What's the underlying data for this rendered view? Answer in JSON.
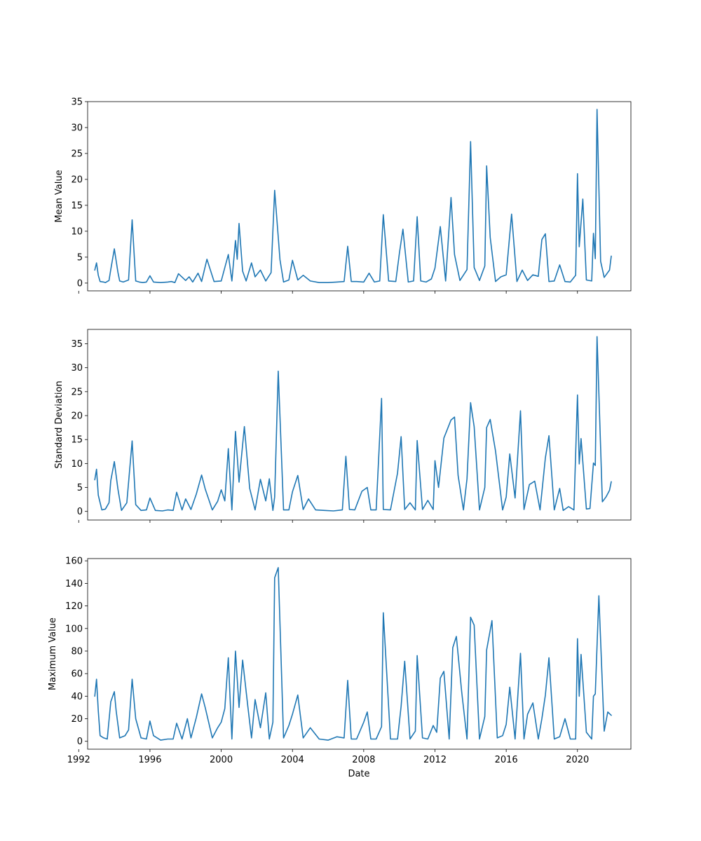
{
  "figure": {
    "background": "#ffffff",
    "line_color": "#1f77b4"
  },
  "chart_data": [
    {
      "type": "line",
      "title": "",
      "xlabel": "",
      "ylabel": "Mean Value",
      "xlim": [
        1992.5,
        2023.0
      ],
      "ylim": [
        -1.5,
        35
      ],
      "yticks": [
        0,
        5,
        10,
        15,
        20,
        25,
        30,
        35
      ],
      "xticks": [
        1992,
        1996,
        2000,
        2004,
        2008,
        2012,
        2016,
        2020
      ],
      "show_xtick_labels": false,
      "grid": false,
      "series": [
        {
          "x": [
            1992.9,
            1993.0,
            1993.1,
            1993.2,
            1993.4,
            1993.5,
            1993.7,
            1993.8,
            1994.0,
            1994.2,
            1994.3,
            1994.5,
            1994.8,
            1995.0,
            1995.2,
            1995.4,
            1995.6,
            1995.8,
            1996.0,
            1996.2,
            1996.6,
            1997.0,
            1997.2,
            1997.4,
            1997.6,
            1998.0,
            1998.2,
            1998.4,
            1998.7,
            1998.9,
            1999.2,
            1999.6,
            2000.0,
            2000.4,
            2000.6,
            2000.8,
            2000.9,
            2001.0,
            2001.2,
            2001.4,
            2001.7,
            2001.9,
            2002.2,
            2002.5,
            2002.8,
            2003.0,
            2003.3,
            2003.5,
            2003.8,
            2004.0,
            2004.3,
            2004.6,
            2005.0,
            2005.5,
            2006.0,
            2006.5,
            2006.9,
            2007.1,
            2007.3,
            2007.6,
            2008.0,
            2008.3,
            2008.6,
            2008.9,
            2009.1,
            2009.4,
            2009.8,
            2010.0,
            2010.2,
            2010.5,
            2010.8,
            2011.0,
            2011.2,
            2011.5,
            2011.8,
            2012.0,
            2012.3,
            2012.6,
            2012.9,
            2013.1,
            2013.4,
            2013.8,
            2014.0,
            2014.2,
            2014.5,
            2014.8,
            2014.9,
            2015.1,
            2015.4,
            2015.7,
            2016.0,
            2016.3,
            2016.6,
            2016.9,
            2017.2,
            2017.5,
            2017.8,
            2018.0,
            2018.2,
            2018.4,
            2018.7,
            2019.0,
            2019.3,
            2019.6,
            2019.9,
            2020.0,
            2020.1,
            2020.3,
            2020.5,
            2020.8,
            2020.9,
            2021.0,
            2021.1,
            2021.3,
            2021.5,
            2021.8,
            2021.9
          ],
          "y": [
            2.5,
            3.9,
            1.5,
            0.3,
            0.2,
            0.1,
            0.5,
            2.6,
            6.6,
            2.1,
            0.4,
            0.2,
            0.6,
            12.2,
            0.4,
            0.2,
            0.1,
            0.2,
            1.4,
            0.2,
            0.1,
            0.2,
            0.3,
            0.1,
            1.8,
            0.5,
            1.2,
            0.2,
            1.9,
            0.3,
            4.6,
            0.3,
            0.4,
            5.5,
            0.4,
            8.2,
            4.6,
            11.5,
            2.3,
            0.4,
            3.9,
            1.2,
            2.5,
            0.4,
            2.0,
            17.9,
            4.5,
            0.2,
            0.6,
            4.4,
            0.6,
            1.5,
            0.4,
            0.1,
            0.1,
            0.2,
            0.3,
            7.1,
            0.3,
            0.3,
            0.2,
            1.9,
            0.2,
            0.4,
            13.2,
            0.4,
            0.3,
            5.7,
            10.4,
            0.2,
            0.4,
            12.8,
            0.4,
            0.2,
            0.8,
            2.9,
            10.9,
            0.4,
            16.5,
            5.5,
            0.5,
            2.6,
            27.3,
            3.0,
            0.5,
            3.3,
            22.6,
            8.8,
            0.3,
            1.2,
            1.6,
            13.3,
            0.3,
            2.5,
            0.5,
            1.6,
            1.3,
            8.4,
            9.5,
            0.3,
            0.4,
            3.5,
            0.3,
            0.2,
            1.5,
            21.1,
            7.0,
            16.2,
            0.6,
            0.4,
            9.6,
            4.7,
            33.5,
            4.2,
            1.1,
            2.5,
            5.2
          ]
        }
      ]
    },
    {
      "type": "line",
      "title": "",
      "xlabel": "",
      "ylabel": "Standard Deviation",
      "xlim": [
        1992.5,
        2023.0
      ],
      "ylim": [
        -1.8,
        38.0
      ],
      "yticks": [
        0,
        5,
        10,
        15,
        20,
        25,
        30,
        35
      ],
      "xticks": [
        1992,
        1996,
        2000,
        2004,
        2008,
        2012,
        2016,
        2020
      ],
      "show_xtick_labels": false,
      "grid": false,
      "series": [
        {
          "x": [
            1992.9,
            1993.0,
            1993.1,
            1993.3,
            1993.5,
            1993.7,
            1993.8,
            1994.0,
            1994.2,
            1994.4,
            1994.7,
            1995.0,
            1995.2,
            1995.5,
            1995.8,
            1996.0,
            1996.3,
            1996.7,
            1997.0,
            1997.3,
            1997.5,
            1997.8,
            1998.0,
            1998.3,
            1998.6,
            1998.9,
            1999.1,
            1999.5,
            1999.8,
            2000.0,
            2000.2,
            2000.4,
            2000.6,
            2000.8,
            2001.0,
            2001.3,
            2001.6,
            2001.9,
            2002.2,
            2002.5,
            2002.7,
            2002.9,
            2003.0,
            2003.2,
            2003.5,
            2003.8,
            2004.0,
            2004.3,
            2004.6,
            2004.9,
            2005.3,
            2005.8,
            2006.3,
            2006.8,
            2007.0,
            2007.2,
            2007.5,
            2007.9,
            2008.2,
            2008.4,
            2008.7,
            2009.0,
            2009.1,
            2009.5,
            2009.9,
            2010.1,
            2010.3,
            2010.6,
            2010.9,
            2011.0,
            2011.3,
            2011.6,
            2011.9,
            2012.0,
            2012.2,
            2012.5,
            2012.9,
            2013.1,
            2013.3,
            2013.6,
            2013.8,
            2014.0,
            2014.2,
            2014.5,
            2014.8,
            2014.9,
            2015.1,
            2015.4,
            2015.8,
            2016.0,
            2016.2,
            2016.5,
            2016.8,
            2017.0,
            2017.3,
            2017.6,
            2017.9,
            2018.0,
            2018.2,
            2018.4,
            2018.7,
            2019.0,
            2019.2,
            2019.5,
            2019.8,
            2020.0,
            2020.1,
            2020.2,
            2020.5,
            2020.7,
            2020.9,
            2021.0,
            2021.1,
            2021.4,
            2021.6,
            2021.8,
            2021.9
          ],
          "y": [
            6.6,
            8.8,
            3.4,
            0.3,
            0.5,
            1.8,
            6.4,
            10.4,
            4.7,
            0.2,
            1.8,
            14.7,
            1.4,
            0.2,
            0.3,
            2.8,
            0.2,
            0.1,
            0.3,
            0.2,
            4.0,
            0.3,
            2.6,
            0.4,
            3.6,
            7.6,
            4.7,
            0.3,
            2.1,
            4.5,
            2.2,
            13.1,
            0.3,
            16.7,
            6.1,
            17.7,
            4.8,
            0.3,
            6.7,
            2.2,
            6.8,
            0.2,
            3.0,
            29.3,
            0.3,
            0.3,
            4.1,
            7.5,
            0.4,
            2.6,
            0.3,
            0.2,
            0.1,
            0.3,
            11.5,
            0.4,
            0.3,
            4.2,
            5.0,
            0.3,
            0.3,
            23.6,
            0.4,
            0.3,
            8.0,
            15.6,
            0.4,
            1.8,
            0.3,
            14.8,
            0.4,
            2.3,
            0.4,
            10.6,
            5.0,
            15.3,
            19.1,
            19.7,
            7.5,
            0.3,
            6.8,
            22.7,
            17.7,
            0.3,
            5.0,
            17.5,
            19.2,
            12.6,
            0.3,
            3.0,
            12.0,
            2.8,
            21.0,
            0.4,
            5.6,
            6.3,
            0.3,
            4.0,
            11.2,
            15.8,
            0.3,
            4.8,
            0.2,
            1.0,
            0.3,
            24.3,
            9.9,
            15.2,
            0.5,
            0.6,
            10.1,
            9.6,
            36.5,
            2.0,
            3.0,
            4.4,
            6.2
          ]
        }
      ]
    },
    {
      "type": "line",
      "title": "",
      "xlabel": "Date",
      "ylabel": "Maximum Value",
      "xlim": [
        1992.5,
        2023.0
      ],
      "ylim": [
        -7,
        162
      ],
      "yticks": [
        0,
        20,
        40,
        60,
        80,
        100,
        120,
        140,
        160
      ],
      "xticks": [
        1992,
        1996,
        2000,
        2004,
        2008,
        2012,
        2016,
        2020
      ],
      "show_xtick_labels": true,
      "grid": false,
      "series": [
        {
          "x": [
            1992.9,
            1993.0,
            1993.1,
            1993.2,
            1993.4,
            1993.6,
            1993.8,
            1994.0,
            1994.1,
            1994.3,
            1994.6,
            1994.8,
            1995.0,
            1995.2,
            1995.5,
            1995.8,
            1996.0,
            1996.2,
            1996.6,
            1997.0,
            1997.3,
            1997.5,
            1997.8,
            1998.1,
            1998.3,
            1998.6,
            1998.9,
            1999.1,
            1999.5,
            1999.8,
            2000.0,
            2000.2,
            2000.4,
            2000.6,
            2000.8,
            2001.0,
            2001.2,
            2001.5,
            2001.7,
            2001.9,
            2002.2,
            2002.5,
            2002.7,
            2002.9,
            2003.0,
            2003.2,
            2003.5,
            2003.8,
            2004.0,
            2004.3,
            2004.6,
            2005.0,
            2005.5,
            2006.0,
            2006.5,
            2006.9,
            2007.1,
            2007.3,
            2007.6,
            2008.0,
            2008.2,
            2008.4,
            2008.7,
            2009.0,
            2009.1,
            2009.5,
            2009.9,
            2010.1,
            2010.3,
            2010.6,
            2010.9,
            2011.0,
            2011.3,
            2011.6,
            2011.9,
            2012.1,
            2012.3,
            2012.5,
            2012.8,
            2013.0,
            2013.2,
            2013.5,
            2013.8,
            2014.0,
            2014.2,
            2014.5,
            2014.8,
            2014.9,
            2015.2,
            2015.5,
            2015.8,
            2016.0,
            2016.2,
            2016.5,
            2016.8,
            2017.0,
            2017.2,
            2017.5,
            2017.8,
            2018.0,
            2018.2,
            2018.4,
            2018.7,
            2019.0,
            2019.3,
            2019.6,
            2019.9,
            2020.0,
            2020.1,
            2020.2,
            2020.5,
            2020.8,
            2020.9,
            2021.0,
            2021.2,
            2021.5,
            2021.7,
            2021.9
          ],
          "y": [
            40.0,
            55.0,
            27.0,
            5.0,
            3.0,
            2.0,
            35.0,
            44.0,
            27.0,
            3.0,
            5.0,
            10.0,
            55.0,
            20.0,
            3.0,
            2.0,
            18.0,
            5.0,
            1.0,
            2.0,
            2.0,
            16.0,
            2.0,
            20.0,
            3.0,
            21.0,
            42.0,
            30.0,
            3.0,
            12.0,
            17.0,
            29.0,
            74.0,
            2.0,
            80.0,
            30.0,
            72.0,
            30.0,
            3.0,
            37.0,
            12.0,
            43.0,
            2.0,
            17.0,
            145.0,
            154.0,
            3.0,
            14.0,
            24.0,
            41.0,
            3.0,
            12.0,
            2.0,
            1.0,
            4.0,
            3.0,
            54.0,
            2.0,
            2.0,
            17.0,
            26.0,
            2.0,
            2.0,
            13.0,
            114.0,
            2.0,
            2.0,
            31.0,
            71.0,
            2.0,
            9.0,
            76.0,
            3.0,
            2.0,
            14.0,
            8.0,
            56.0,
            62.0,
            2.0,
            83.0,
            93.0,
            44.0,
            2.0,
            110.0,
            103.0,
            2.0,
            22.0,
            81.0,
            107.0,
            3.0,
            5.0,
            15.0,
            48.0,
            2.0,
            78.0,
            2.0,
            24.0,
            34.0,
            2.0,
            20.0,
            41.0,
            74.0,
            2.0,
            4.0,
            20.0,
            2.0,
            2.0,
            91.0,
            40.0,
            77.0,
            8.0,
            2.0,
            40.0,
            42.0,
            129.0,
            9.0,
            26.0,
            23.0
          ]
        }
      ]
    }
  ]
}
